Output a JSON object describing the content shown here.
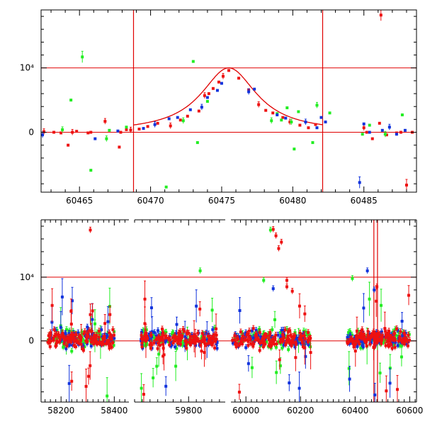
{
  "colors": {
    "axis": "#000000",
    "guide": "#e00000",
    "series_red": "#ee1111",
    "series_green": "#22ee22",
    "series_blue": "#1133dd"
  },
  "chart_data": [
    {
      "id": "zoom",
      "type": "scatter",
      "title": "",
      "xlabel": "",
      "ylabel": "",
      "xlim": [
        60462.3,
        60488.7
      ],
      "ylim": [
        -9300,
        19000
      ],
      "x_ticks": [
        60465,
        60470,
        60475,
        60480,
        60485
      ],
      "y_ticks": [
        {
          "value": 0,
          "label": "0"
        },
        {
          "value": 10000,
          "label": "10⁴"
        }
      ],
      "h_lines": [
        0,
        10000
      ],
      "v_lines": [
        60468.8,
        60482.1
      ],
      "model_curve": {
        "t0": 60475.5,
        "peak": 10000,
        "tau": 2.4,
        "x_range": [
          60468.8,
          60482.1
        ]
      },
      "series": [
        {
          "color": "red",
          "points": [
            [
              60462.5,
              100
            ],
            [
              60463.2,
              0
            ],
            [
              60463.7,
              -100
            ],
            [
              60464.2,
              -2000
            ],
            [
              60464.5,
              0
            ],
            [
              60464.8,
              150
            ],
            [
              60465.6,
              -100
            ],
            [
              60465.8,
              0
            ],
            [
              60466.8,
              1700
            ],
            [
              60467.8,
              -2300
            ],
            [
              60467.9,
              0
            ],
            [
              60468.3,
              400
            ],
            [
              60468.6,
              350
            ],
            [
              60469.2,
              500
            ],
            [
              60469.8,
              900
            ],
            [
              60470.5,
              1400
            ],
            [
              60471.4,
              1000
            ],
            [
              60472.1,
              1900
            ],
            [
              60472.6,
              2500
            ],
            [
              60473.4,
              3300
            ],
            [
              60473.8,
              5700
            ],
            [
              60474.1,
              6000
            ],
            [
              60474.4,
              6800
            ],
            [
              60474.8,
              7800
            ],
            [
              60475.1,
              8700
            ],
            [
              60475.5,
              9600
            ],
            [
              60476.2,
              8400
            ],
            [
              60476.9,
              6600
            ],
            [
              60477.6,
              4300
            ],
            [
              60478.1,
              3400
            ],
            [
              60478.6,
              3000
            ],
            [
              60479.3,
              2300
            ],
            [
              60479.8,
              1600
            ],
            [
              60480.5,
              1100
            ],
            [
              60481.1,
              700
            ],
            [
              60481.6,
              1200
            ],
            [
              60485.0,
              700
            ],
            [
              60485.2,
              0
            ],
            [
              60485.6,
              -1000
            ],
            [
              60486.1,
              1400
            ],
            [
              60486.2,
              18200
            ],
            [
              60486.6,
              -400
            ],
            [
              60487.3,
              -100
            ],
            [
              60487.6,
              0
            ],
            [
              60488.0,
              -8200
            ],
            [
              60488.4,
              0
            ]
          ]
        },
        {
          "color": "green",
          "points": [
            [
              60463.8,
              400
            ],
            [
              60464.4,
              5000
            ],
            [
              60465.2,
              11700
            ],
            [
              60465.8,
              -5900
            ],
            [
              60466.9,
              -1000
            ],
            [
              60467.1,
              300
            ],
            [
              60468.3,
              800
            ],
            [
              60471.1,
              -8500
            ],
            [
              60472.3,
              1800
            ],
            [
              60473.0,
              11000
            ],
            [
              60473.3,
              -1600
            ],
            [
              60474.0,
              4800
            ],
            [
              60478.5,
              1800
            ],
            [
              60478.9,
              2900
            ],
            [
              60479.2,
              1900
            ],
            [
              60479.6,
              3800
            ],
            [
              60479.9,
              1600
            ],
            [
              60480.1,
              -2600
            ],
            [
              60480.4,
              3200
            ],
            [
              60481.4,
              -1600
            ],
            [
              60481.7,
              4200
            ],
            [
              60482.6,
              3000
            ],
            [
              60484.9,
              -300
            ],
            [
              60485.4,
              1100
            ],
            [
              60486.5,
              -300
            ],
            [
              60487.7,
              2700
            ]
          ]
        },
        {
          "color": "blue",
          "points": [
            [
              60462.4,
              -400
            ],
            [
              60466.1,
              -1000
            ],
            [
              60467.7,
              200
            ],
            [
              60469.5,
              600
            ],
            [
              60470.3,
              1200
            ],
            [
              60471.3,
              2100
            ],
            [
              60471.9,
              2300
            ],
            [
              60472.8,
              3500
            ],
            [
              60473.6,
              3900
            ],
            [
              60474.0,
              5400
            ],
            [
              60474.7,
              6500
            ],
            [
              60475.0,
              7600
            ],
            [
              60476.9,
              6300
            ],
            [
              60477.3,
              6700
            ],
            [
              60478.9,
              2700
            ],
            [
              60479.5,
              2200
            ],
            [
              60480.9,
              1600
            ],
            [
              60481.7,
              700
            ],
            [
              60482.0,
              2300
            ],
            [
              60482.3,
              1600
            ],
            [
              60484.7,
              -7800
            ],
            [
              60485.0,
              1300
            ],
            [
              60485.4,
              0
            ],
            [
              60486.3,
              300
            ],
            [
              60486.8,
              800
            ],
            [
              60487.3,
              -300
            ],
            [
              60487.9,
              300
            ]
          ]
        }
      ]
    },
    {
      "id": "full",
      "type": "scatter",
      "title": "",
      "xlabel": "",
      "ylabel": "",
      "ylim": [
        -9600,
        19000
      ],
      "y_ticks": [
        {
          "value": 0,
          "label": "0"
        },
        {
          "value": 10000,
          "label": "10⁴"
        }
      ],
      "h_lines": [
        0,
        10000
      ],
      "v_lines": [
        60468.8,
        60482.1
      ],
      "x_tick_labels": [
        "58200",
        "58400",
        "59800",
        "60000",
        "60200",
        "60400",
        "60600"
      ],
      "segments": [
        {
          "xlim": [
            58125,
            58455
          ],
          "x_ticks": [
            58200,
            58400
          ]
        },
        {
          "xlim": [
            59660,
            59895
          ],
          "x_ticks": [
            59800
          ]
        },
        {
          "xlim": [
            59945,
            60625
          ],
          "x_ticks": [
            60000,
            60200,
            60400,
            60600
          ]
        }
      ],
      "clusters": [
        {
          "x_range": [
            58150,
            58400
          ],
          "seed": 11
        },
        {
          "x_range": [
            59676,
            59875
          ],
          "seed": 23
        },
        {
          "x_range": [
            59950,
            60240
          ],
          "seed": 37
        },
        {
          "x_range": [
            60370,
            60600
          ],
          "seed": 53
        }
      ],
      "highlights": [
        {
          "color": "red",
          "points": [
            [
              58310,
              17400
            ],
            [
              60100,
              17500
            ],
            [
              60110,
              16500
            ],
            [
              60130,
              15500
            ],
            [
              60120,
              14500
            ],
            [
              60150,
              9500
            ],
            [
              60150,
              8500
            ],
            [
              60170,
              7800
            ],
            [
              60480,
              8500
            ]
          ]
        },
        {
          "color": "green",
          "points": [
            [
              60090,
              17400
            ],
            [
              59830,
              11000
            ],
            [
              60065,
              9500
            ],
            [
              60390,
              9800
            ]
          ]
        },
        {
          "color": "blue",
          "points": [
            [
              60445,
              11000
            ],
            [
              60470,
              8000
            ],
            [
              60100,
              8200
            ]
          ]
        }
      ]
    }
  ]
}
